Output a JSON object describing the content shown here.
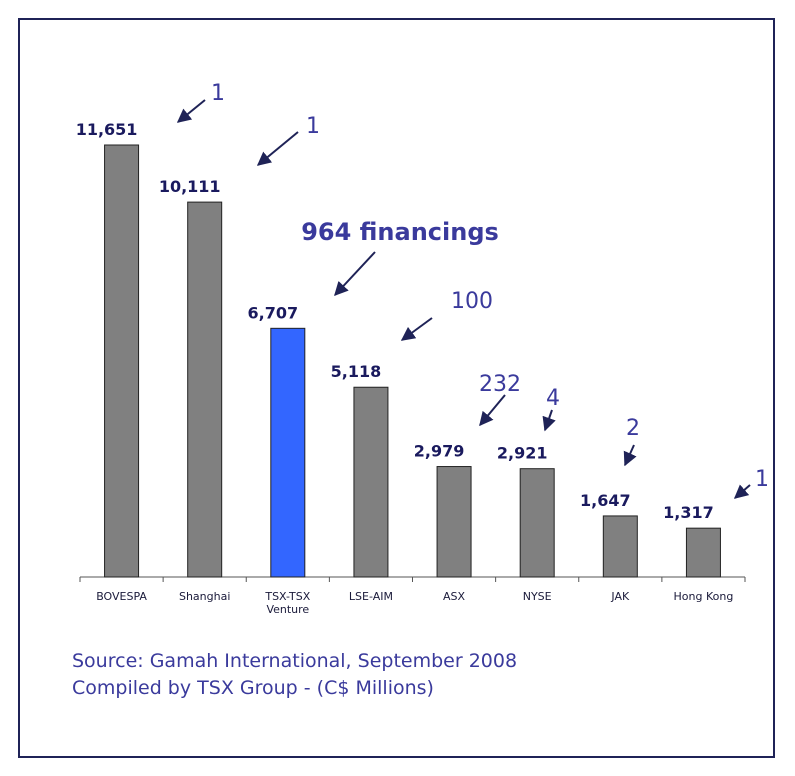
{
  "chart_data": {
    "type": "bar",
    "categories": [
      "BOVESPA",
      "Shanghai",
      "TSX-TSX Venture",
      "LSE-AIM",
      "ASX",
      "NYSE",
      "JAK",
      "Hong Kong"
    ],
    "values": [
      11651,
      10111,
      6707,
      5118,
      2979,
      2921,
      1647,
      1317
    ],
    "value_labels": [
      "11,651",
      "10,111",
      "6,707",
      "5,118",
      "2,979",
      "2,921",
      "1,647",
      "1,317"
    ],
    "colors": [
      "#808080",
      "#808080",
      "#3366ff",
      "#808080",
      "#808080",
      "#808080",
      "#808080",
      "#808080"
    ],
    "annotations": [
      "1",
      "1",
      "964 financings",
      "100",
      "232",
      "4",
      "2",
      "1"
    ],
    "source": [
      "Source: Gamah International, September 2008",
      "Compiled by TSX Group - (C$ Millions)"
    ]
  }
}
